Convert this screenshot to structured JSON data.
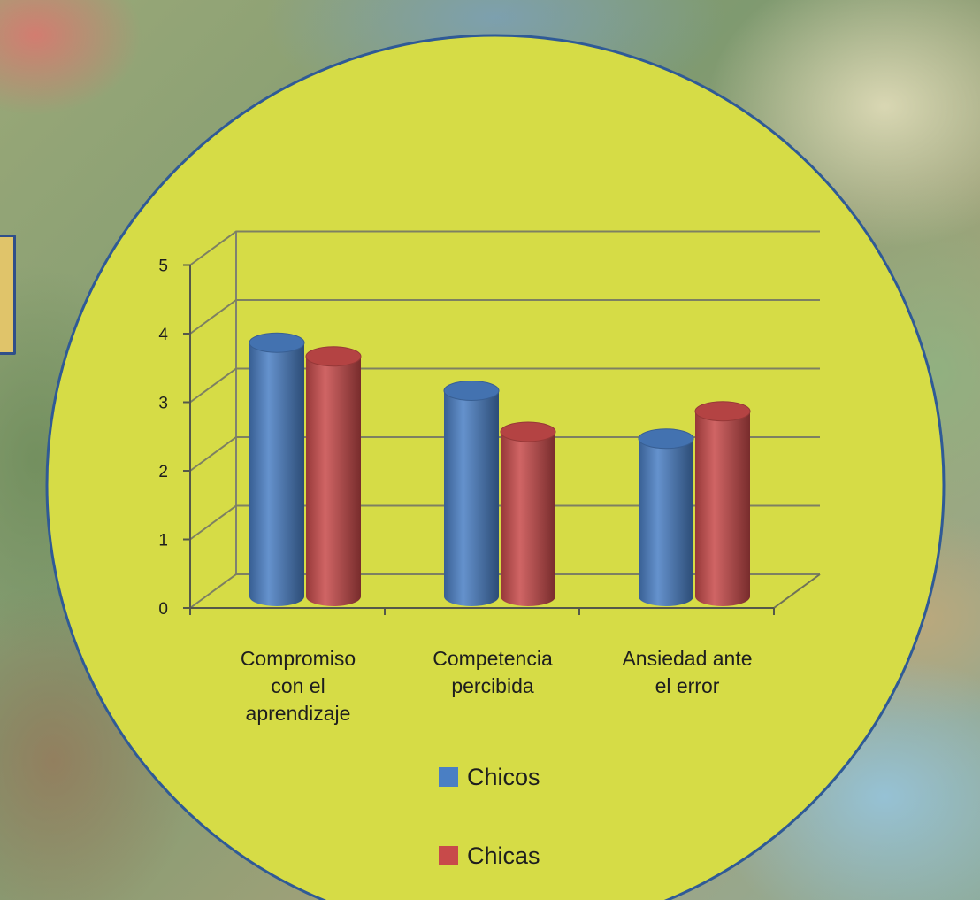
{
  "chart_data": {
    "type": "bar",
    "categories": [
      [
        "Compromiso",
        "con el",
        "aprendizaje"
      ],
      [
        "Competencia",
        "percibida"
      ],
      [
        "Ansiedad ante",
        "el error"
      ]
    ],
    "series": [
      {
        "name": "Chicos",
        "color": "#4a7fc4",
        "values": [
          3.7,
          3.0,
          2.3
        ]
      },
      {
        "name": "Chicas",
        "color": "#c84a4a",
        "values": [
          3.5,
          2.4,
          2.7
        ]
      }
    ],
    "y_ticks": [
      "0",
      "1",
      "2",
      "3",
      "4",
      "5"
    ],
    "ylim": [
      0,
      5
    ],
    "grid": true,
    "legend_position": "bottom",
    "chart_3d": true,
    "background_shape": "circle",
    "background_color": "#d6dc46",
    "border_color": "#2f5a96"
  }
}
